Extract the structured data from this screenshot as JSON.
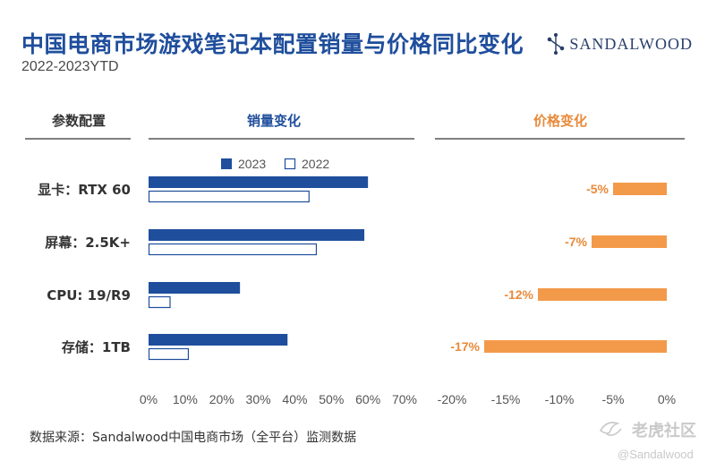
{
  "header": {
    "title": "中国电商市场游戏笔记本配置销量与价格同比变化",
    "subtitle": "2022-2023YTD",
    "brand": "SANDALWOOD"
  },
  "footer": {
    "source": "数据来源：Sandalwood中国电商市场（全平台）监测数据",
    "watermark_cn": "老虎社区",
    "watermark_en": "@Sandalwood"
  },
  "colors": {
    "series_2023": "#1f4e9c",
    "series_2022_border": "#1f4e9c",
    "price_bar": "#f39a4a",
    "price_text": "#e98a3a",
    "header_blue": "#1f4e9c",
    "header_orange": "#e98a3a",
    "header_gray": "#333333"
  },
  "chart_data": [
    {
      "type": "bar",
      "orientation": "horizontal",
      "column_header": "参数配置",
      "title": "销量变化",
      "categories": [
        "显卡：RTX 60",
        "屏幕：2.5K+",
        "CPU: 19/R9",
        "存储：1TB"
      ],
      "series": [
        {
          "name": "2023",
          "values": [
            60,
            59,
            25,
            38
          ]
        },
        {
          "name": "2022",
          "values": [
            44,
            46,
            6,
            11
          ]
        }
      ],
      "xlim": [
        0,
        70
      ],
      "ticks": [
        "0%",
        "10%",
        "20%",
        "30%",
        "40%",
        "50%",
        "60%",
        "70%"
      ],
      "legend": "top-center"
    },
    {
      "type": "bar",
      "orientation": "horizontal",
      "title": "价格变化",
      "categories": [
        "显卡：RTX 60",
        "屏幕：2.5K+",
        "CPU: 19/R9",
        "存储：1TB"
      ],
      "values": [
        -5,
        -7,
        -12,
        -17
      ],
      "labels": [
        "-5%",
        "-7%",
        "-12%",
        "-17%"
      ],
      "xlim": [
        -20,
        0
      ],
      "ticks": [
        "-20%",
        "-15%",
        "-10%",
        "-5%",
        "0%"
      ]
    }
  ]
}
